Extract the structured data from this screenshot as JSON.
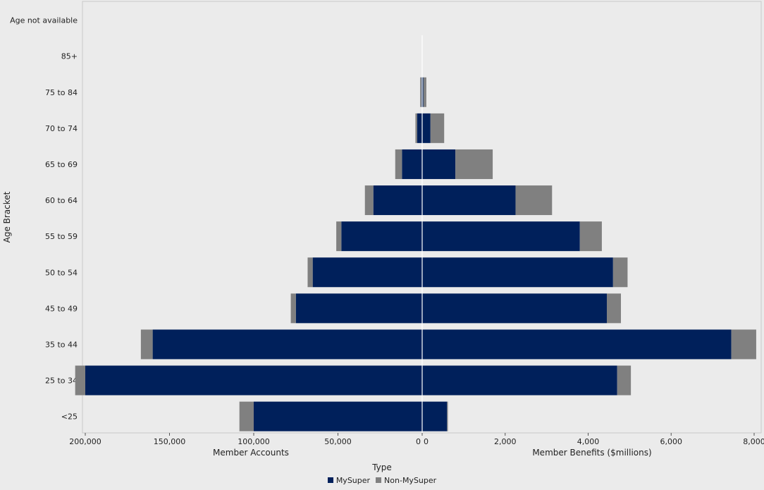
{
  "chart_data": {
    "type": "bar",
    "orientation": "horizontal",
    "layout": "butterfly",
    "categories": [
      "Age not available",
      "85+",
      "75 to 84",
      "70 to 74",
      "65 to 69",
      "60 to 64",
      "55 to 59",
      "50 to 54",
      "45 to 49",
      "35 to 44",
      "25 to 34",
      "<25"
    ],
    "category_axis_label": "Age Bracket",
    "series": [
      {
        "name": "MySuper",
        "color": "#00205b"
      },
      {
        "name": "Non-MySuper",
        "color": "#808080"
      }
    ],
    "panels": [
      {
        "name": "accounts",
        "xlabel": "Member Accounts",
        "direction": "left",
        "xlim": [
          0,
          205000
        ],
        "ticks": [
          {
            "value": 200000,
            "label": "200,000"
          },
          {
            "value": 150000,
            "label": "150,000"
          },
          {
            "value": 100000,
            "label": "100,000"
          },
          {
            "value": 50000,
            "label": "50,000"
          },
          {
            "value": 0,
            "label": "0"
          }
        ],
        "values": {
          "MySuper": [
            0,
            0,
            500,
            3000,
            12000,
            29000,
            48000,
            65000,
            75000,
            160000,
            200000,
            100000
          ],
          "Non-MySuper": [
            0,
            0,
            700,
            1000,
            4000,
            5000,
            3000,
            3000,
            3000,
            7000,
            6000,
            8500
          ]
        }
      },
      {
        "name": "benefits",
        "xlabel": "Member Benefits ($millions)",
        "direction": "right",
        "xlim": [
          0,
          8150
        ],
        "ticks": [
          {
            "value": 0,
            "label": "0"
          },
          {
            "value": 2000,
            "label": "2,000"
          },
          {
            "value": 4000,
            "label": "4,000"
          },
          {
            "value": 6000,
            "label": "6,000"
          },
          {
            "value": 8000,
            "label": "8,000"
          }
        ],
        "values": {
          "MySuper": [
            0,
            0,
            30,
            200,
            800,
            2250,
            3800,
            4600,
            4450,
            7450,
            4700,
            600
          ],
          "Non-MySuper": [
            0,
            0,
            70,
            330,
            900,
            880,
            530,
            350,
            340,
            600,
            330,
            20
          ]
        }
      }
    ],
    "legend": {
      "title": "Type",
      "position": "bottom"
    },
    "grid": false
  }
}
